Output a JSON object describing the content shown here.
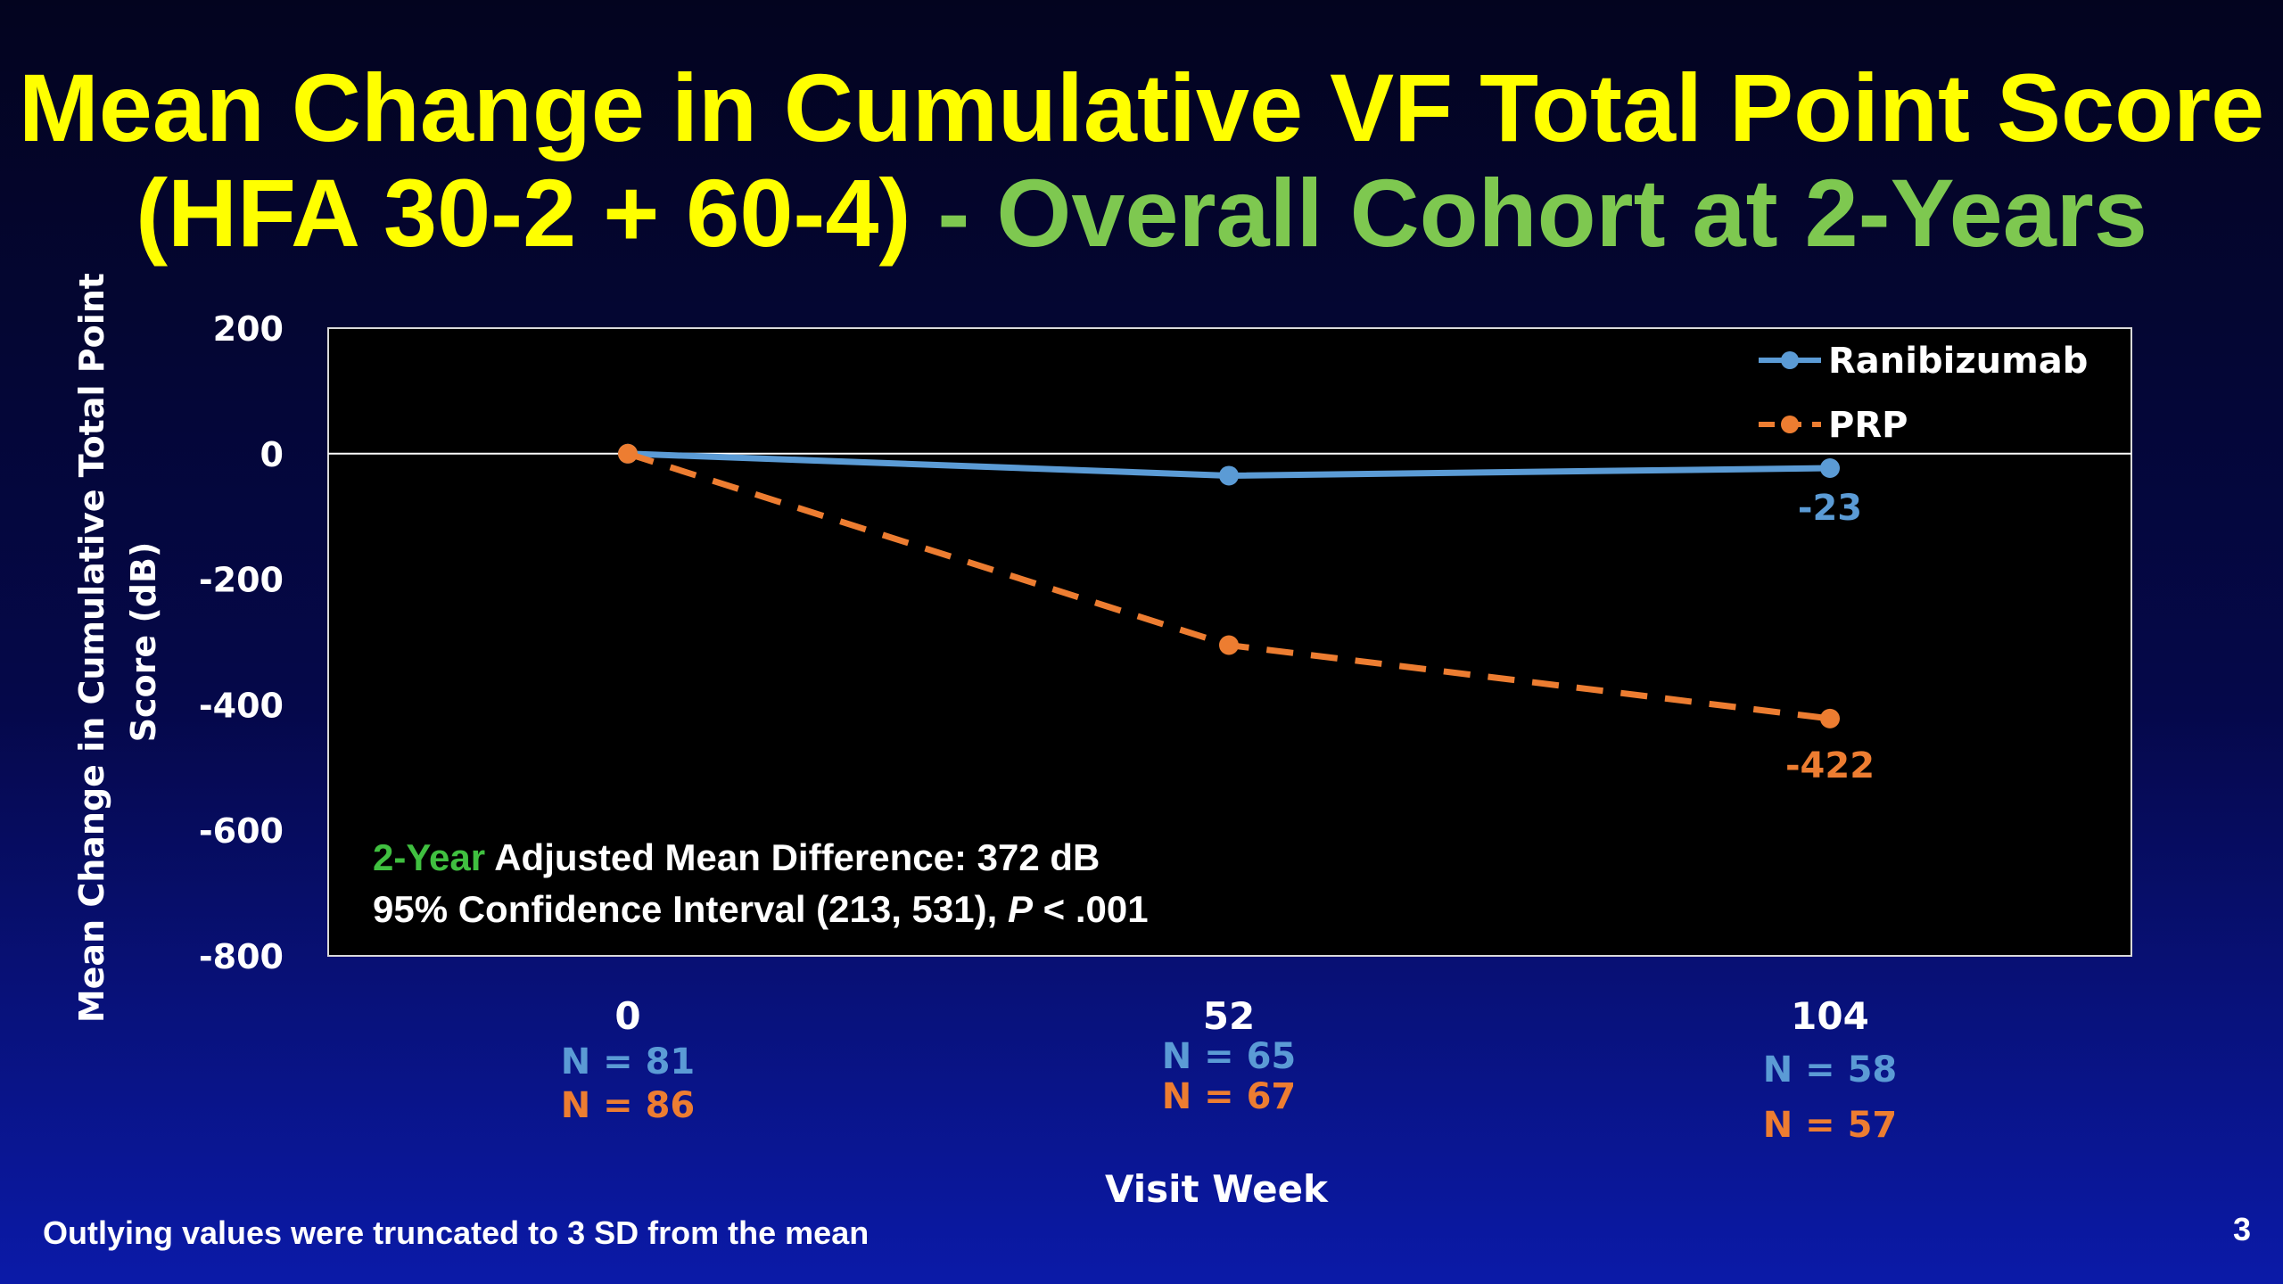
{
  "slide": {
    "title_line1": "Mean Change in Cumulative VF Total Point Score",
    "title_line2_part1": "(HFA 30-2 + 60-4)",
    "title_line2_part2": " - Overall Cohort at 2-Years",
    "footnote": "Outlying values were truncated to 3 SD from the mean",
    "page_number": "3",
    "colors": {
      "title": "#ffff00",
      "title_accent": "#7ec850",
      "ranibizumab": "#5b9bd5",
      "prp": "#ed7d31",
      "highlight_green": "#40c040",
      "background_top": "#03041f",
      "background_bottom": "#0b1aa8"
    }
  },
  "chart_data": {
    "type": "line",
    "ylabel": "Mean Change in Cumulative Total Point Score (dB)",
    "xlabel": "Visit Week",
    "ylim": [
      -800,
      200
    ],
    "yticks": [
      "200",
      "0",
      "-200",
      "-400",
      "-600",
      "-800"
    ],
    "x": [
      "0",
      "52",
      "104"
    ],
    "legend_position": "top-right",
    "grid": false,
    "zero_line": true,
    "series": [
      {
        "name": "Ranibizumab",
        "values": [
          0,
          -35,
          -23
        ],
        "style": "solid",
        "color": "#5b9bd5",
        "n_labels": [
          "N = 81",
          "N = 65",
          "N = 58"
        ],
        "end_label": "-23"
      },
      {
        "name": "PRP",
        "values": [
          0,
          -305,
          -422
        ],
        "style": "dashed",
        "color": "#ed7d31",
        "n_labels": [
          "N = 86",
          "N = 67",
          "N = 57"
        ],
        "end_label": "-422"
      }
    ],
    "annotation": {
      "line1_highlight": "2-Year",
      "line1_rest": " Adjusted Mean Difference: 372 dB",
      "line2_main": "95% Confidence Interval (213, 531), ",
      "line2_p": "P",
      "line2_end": " < .001"
    }
  }
}
